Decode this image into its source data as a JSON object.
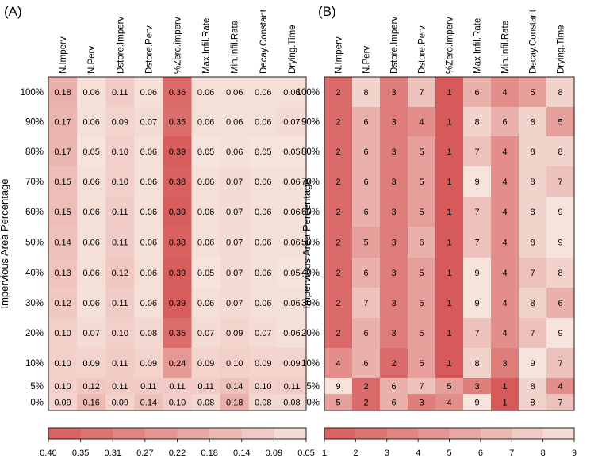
{
  "chart_data": [
    {
      "type": "heatmap",
      "panel_label": "(A)",
      "ylabel": "Impervious Area Percentage",
      "columns": [
        "N.Imperv",
        "N.Perv",
        "Dstore.Imperv",
        "Dstore.Perv",
        "%Zero.imperv",
        "Max.Infil.Rate",
        "Min.Infil.Rate",
        "Decay.Constant",
        "Drying.Time"
      ],
      "rows": [
        "100%",
        "90%",
        "80%",
        "70%",
        "60%",
        "50%",
        "40%",
        "30%",
        "20%",
        "10%",
        "5%",
        "0%"
      ],
      "values": [
        [
          "0.18",
          "0.06",
          "0.11",
          "0.06",
          "0.36",
          "0.06",
          "0.06",
          "0.06",
          "0.06"
        ],
        [
          "0.17",
          "0.06",
          "0.09",
          "0.07",
          "0.35",
          "0.06",
          "0.06",
          "0.06",
          "0.07"
        ],
        [
          "0.17",
          "0.05",
          "0.10",
          "0.06",
          "0.39",
          "0.05",
          "0.06",
          "0.05",
          "0.05"
        ],
        [
          "0.15",
          "0.06",
          "0.10",
          "0.06",
          "0.38",
          "0.06",
          "0.07",
          "0.06",
          "0.06"
        ],
        [
          "0.15",
          "0.06",
          "0.11",
          "0.06",
          "0.39",
          "0.06",
          "0.07",
          "0.06",
          "0.06"
        ],
        [
          "0.14",
          "0.06",
          "0.11",
          "0.06",
          "0.38",
          "0.06",
          "0.07",
          "0.06",
          "0.06"
        ],
        [
          "0.13",
          "0.06",
          "0.12",
          "0.06",
          "0.39",
          "0.05",
          "0.07",
          "0.06",
          "0.05"
        ],
        [
          "0.12",
          "0.06",
          "0.11",
          "0.06",
          "0.39",
          "0.06",
          "0.07",
          "0.06",
          "0.06"
        ],
        [
          "0.10",
          "0.07",
          "0.10",
          "0.08",
          "0.35",
          "0.07",
          "0.09",
          "0.07",
          "0.06"
        ],
        [
          "0.10",
          "0.09",
          "0.11",
          "0.09",
          "0.24",
          "0.09",
          "0.10",
          "0.09",
          "0.09"
        ],
        [
          "0.10",
          "0.12",
          "0.11",
          "0.11",
          "0.11",
          "0.11",
          "0.14",
          "0.10",
          "0.11"
        ],
        [
          "0.09",
          "0.16",
          "0.09",
          "0.14",
          "0.10",
          "0.08",
          "0.18",
          "0.08",
          "0.08"
        ]
      ],
      "color_range": [
        0.4,
        0.05
      ],
      "legend_ticks": [
        "0.40",
        "0.35",
        "0.31",
        "0.27",
        "0.22",
        "0.18",
        "0.14",
        "0.09",
        "0.05"
      ]
    },
    {
      "type": "heatmap",
      "panel_label": "(B)",
      "ylabel": "Impervious Area Percentage",
      "columns": [
        "N.Imperv",
        "N.Perv",
        "Dstore.Imperv",
        "Dstore.Perv",
        "%Zero.imperv",
        "Max.Infil.Rate",
        "Min.Infil.Rate",
        "Decay.Constant",
        "Drying.Time"
      ],
      "rows": [
        "100%",
        "90%",
        "80%",
        "70%",
        "60%",
        "50%",
        "40%",
        "30%",
        "20%",
        "10%",
        "5%",
        "0%"
      ],
      "values": [
        [
          "2",
          "8",
          "3",
          "7",
          "1",
          "6",
          "4",
          "5",
          "8"
        ],
        [
          "2",
          "6",
          "3",
          "4",
          "1",
          "8",
          "6",
          "8",
          "5"
        ],
        [
          "2",
          "6",
          "3",
          "5",
          "1",
          "7",
          "4",
          "8",
          "8"
        ],
        [
          "2",
          "6",
          "3",
          "5",
          "1",
          "9",
          "4",
          "8",
          "7"
        ],
        [
          "2",
          "6",
          "3",
          "5",
          "1",
          "7",
          "4",
          "8",
          "9"
        ],
        [
          "2",
          "5",
          "3",
          "6",
          "1",
          "7",
          "4",
          "8",
          "9"
        ],
        [
          "2",
          "6",
          "3",
          "5",
          "1",
          "9",
          "4",
          "7",
          "8"
        ],
        [
          "2",
          "7",
          "3",
          "5",
          "1",
          "9",
          "4",
          "8",
          "6"
        ],
        [
          "2",
          "6",
          "3",
          "5",
          "1",
          "7",
          "4",
          "7",
          "9"
        ],
        [
          "4",
          "6",
          "2",
          "5",
          "1",
          "8",
          "3",
          "9",
          "7"
        ],
        [
          "9",
          "2",
          "6",
          "7",
          "5",
          "3",
          "1",
          "8",
          "4"
        ],
        [
          "5",
          "2",
          "6",
          "3",
          "4",
          "9",
          "1",
          "8",
          "7"
        ]
      ],
      "color_range": [
        1,
        9
      ],
      "legend_ticks": [
        "1",
        "2",
        "3",
        "4",
        "5",
        "6",
        "7",
        "8",
        "9"
      ]
    }
  ],
  "colors": {
    "high": "#d75a5a",
    "low": "#f6e4dc",
    "text": "#111111"
  }
}
